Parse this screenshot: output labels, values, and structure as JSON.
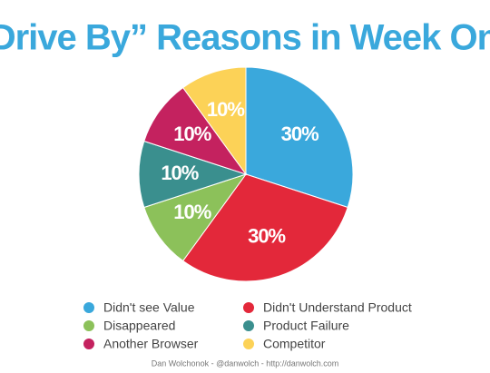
{
  "chart_data": {
    "type": "pie",
    "title": "“Drive By” Reasons in Week One",
    "categories": [
      "Didn't see Value",
      "Didn't Understand Product",
      "Disappeared",
      "Product Failure",
      "Another Browser",
      "Competitor"
    ],
    "values": [
      30,
      30,
      10,
      10,
      10,
      10
    ],
    "value_labels": [
      "30%",
      "30%",
      "10%",
      "10%",
      "10%",
      "10%"
    ],
    "colors": [
      "#3aa8dc",
      "#e3283a",
      "#8cc15a",
      "#3a8f8e",
      "#c4225f",
      "#fcd257"
    ],
    "footer": "Dan Wolchonok - @danwolch - http://danwolch.com"
  }
}
